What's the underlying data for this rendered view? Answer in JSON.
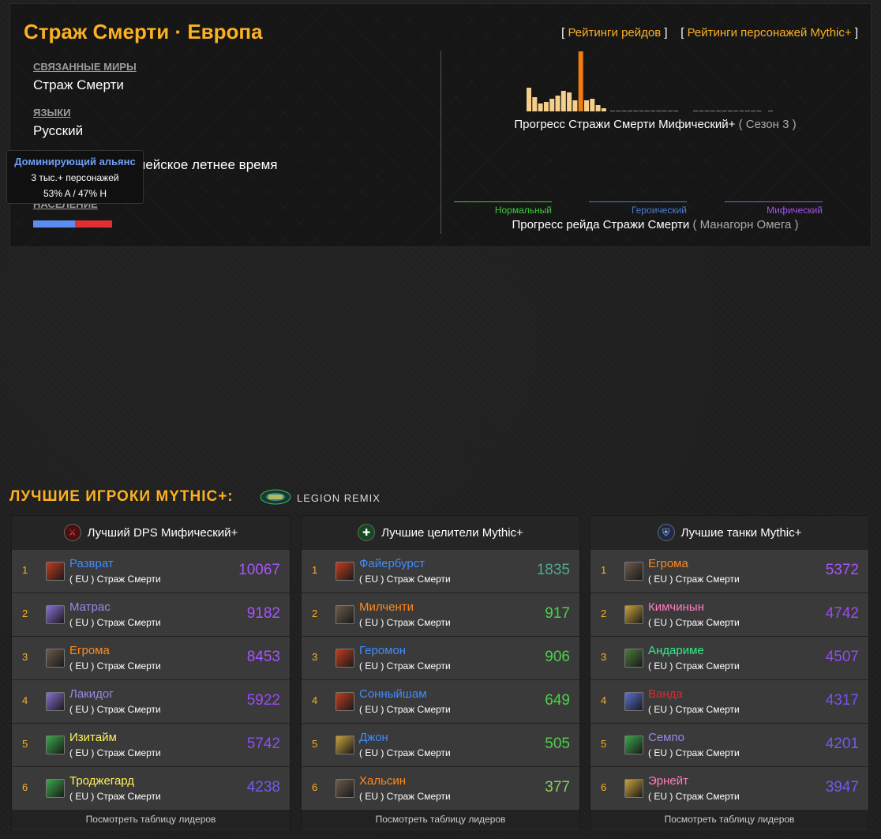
{
  "realm": {
    "title": "Страж Смерти · Европа",
    "links": [
      "Рейтинги рейдов",
      "Рейтинги персонажей Mythic+"
    ],
    "connected_label": "СВЯЗАННЫЕ МИРЫ",
    "connected_value": "Страж Смерти",
    "languages_label": "ЯЗЫКИ",
    "languages_value": "Русский",
    "timezone_value": "Центральноевропейское летнее время",
    "population_label": "НАСЕЛЕНИЕ",
    "population_alliance": 0.53,
    "population_horde": 0.47,
    "alliance_color": "#5a8df0",
    "horde_color": "#e0302f"
  },
  "tooltip": {
    "title": "Доминирующий альянс",
    "count": "3 тыс.+ персонажей",
    "split": "53% A / 47% H"
  },
  "mplus_progress": {
    "caption": "Прогресс Стражи Смерти Мифический+",
    "season": "( Сезон 3 )"
  },
  "raid_progress": {
    "caption": "Прогресс рейда Стражи Смерти",
    "raid": "( Манагорн Омега )",
    "difficulties": [
      {
        "name": "Нормальный",
        "color": "#3ccb3c"
      },
      {
        "name": "Героический",
        "color": "#4a7ed6"
      },
      {
        "name": "Мифический",
        "color": "#a452e8"
      }
    ]
  },
  "section": {
    "title": "ЛУЧШИЕ ИГРОКИ MYTHIC+:",
    "remix": "LEGION REMIX"
  },
  "boards": [
    {
      "title": "Лучший DPS Мифический+",
      "icon": "dps-icon",
      "footer": "Посмотреть таблицу лидеров",
      "rows": [
        {
          "rank": "1",
          "name": "Разврат",
          "realm": "( EU ) Страж Смерти",
          "score": "10067",
          "name_color": "#3f8cff",
          "score_color": "#a854ff",
          "class_color": "#c13b1d"
        },
        {
          "rank": "2",
          "name": "Матрас",
          "realm": "( EU ) Страж Смерти",
          "score": "9182",
          "name_color": "#9d87e6",
          "score_color": "#a854ff",
          "class_color": "#8a6fd6"
        },
        {
          "rank": "3",
          "name": "Егрома",
          "realm": "( EU ) Страж Смерти",
          "score": "8453",
          "name_color": "#ff8a1c",
          "score_color": "#a854ff",
          "class_color": "#6b5a4a"
        },
        {
          "rank": "4",
          "name": "Лакидог",
          "realm": "( EU ) Страж Смерти",
          "score": "5922",
          "name_color": "#9d87e6",
          "score_color": "#9a4cf0",
          "class_color": "#8a6fd6"
        },
        {
          "rank": "5",
          "name": "Изитайм",
          "realm": "( EU ) Страж Смерти",
          "score": "5742",
          "name_color": "#fff15c",
          "score_color": "#8f4cf0",
          "class_color": "#3aa84a"
        },
        {
          "rank": "6",
          "name": "Троджегард",
          "realm": "( EU ) Страж Смерти",
          "score": "4238",
          "name_color": "#fff15c",
          "score_color": "#6e5cf0",
          "class_color": "#3aa84a"
        }
      ]
    },
    {
      "title": "Лучшие целители Mythic+",
      "icon": "healer-icon",
      "footer": "Посмотреть таблицу лидеров",
      "rows": [
        {
          "rank": "1",
          "name": "Файербурст",
          "realm": "( EU ) Страж Смерти",
          "score": "1835",
          "name_color": "#3f8cff",
          "score_color": "#4fa890",
          "class_color": "#c13b1d"
        },
        {
          "rank": "2",
          "name": "Милченти",
          "realm": "( EU ) Страж Смерти",
          "score": "917",
          "name_color": "#ff8a1c",
          "score_color": "#4ed04a",
          "class_color": "#6b5a4a"
        },
        {
          "rank": "3",
          "name": "Геромон",
          "realm": "( EU ) Страж Смерти",
          "score": "906",
          "name_color": "#3f8cff",
          "score_color": "#4ed04a",
          "class_color": "#c13b1d"
        },
        {
          "rank": "4",
          "name": "Сонныйшам",
          "realm": "( EU ) Страж Смерти",
          "score": "649",
          "name_color": "#3f8cff",
          "score_color": "#4ed04a",
          "class_color": "#c13b1d"
        },
        {
          "rank": "5",
          "name": "Джон",
          "realm": "( EU ) Страж Смерти",
          "score": "505",
          "name_color": "#3f8cff",
          "score_color": "#4ed04a",
          "class_color": "#c9a23a"
        },
        {
          "rank": "6",
          "name": "Хальсин",
          "realm": "( EU ) Страж Смерти",
          "score": "377",
          "name_color": "#ff8a1c",
          "score_color": "#8bd06a",
          "class_color": "#6b5a4a"
        }
      ]
    },
    {
      "title": "Лучшие танки Mythic+",
      "icon": "tank-icon",
      "footer": "Посмотреть таблицу лидеров",
      "rows": [
        {
          "rank": "1",
          "name": "Егрома",
          "realm": "( EU ) Страж Смерти",
          "score": "5372",
          "name_color": "#ff8a1c",
          "score_color": "#a854ff",
          "class_color": "#6b5a4a"
        },
        {
          "rank": "2",
          "name": "Кимчинын",
          "realm": "( EU ) Страж Смерти",
          "score": "4742",
          "name_color": "#ff7ec0",
          "score_color": "#9a4cf0",
          "class_color": "#c9a23a"
        },
        {
          "rank": "3",
          "name": "Андариме",
          "realm": "( EU ) Страж Смерти",
          "score": "4507",
          "name_color": "#2ef08a",
          "score_color": "#8f4cf0",
          "class_color": "#4a7a3a"
        },
        {
          "rank": "4",
          "name": "Ванда",
          "realm": "( EU ) Страж Смерти",
          "score": "4317",
          "name_color": "#e02a2a",
          "score_color": "#7a52f0",
          "class_color": "#5a6fd6"
        },
        {
          "rank": "5",
          "name": "Семпо",
          "realm": "( EU ) Страж Смерти",
          "score": "4201",
          "name_color": "#9d87e6",
          "score_color": "#6e5cf0",
          "class_color": "#3aa84a"
        },
        {
          "rank": "6",
          "name": "Эрнейт",
          "realm": "( EU ) Страж Смерти",
          "score": "3947",
          "name_color": "#ff7ec0",
          "score_color": "#6e5cf0",
          "class_color": "#c9a23a"
        }
      ]
    }
  ]
}
